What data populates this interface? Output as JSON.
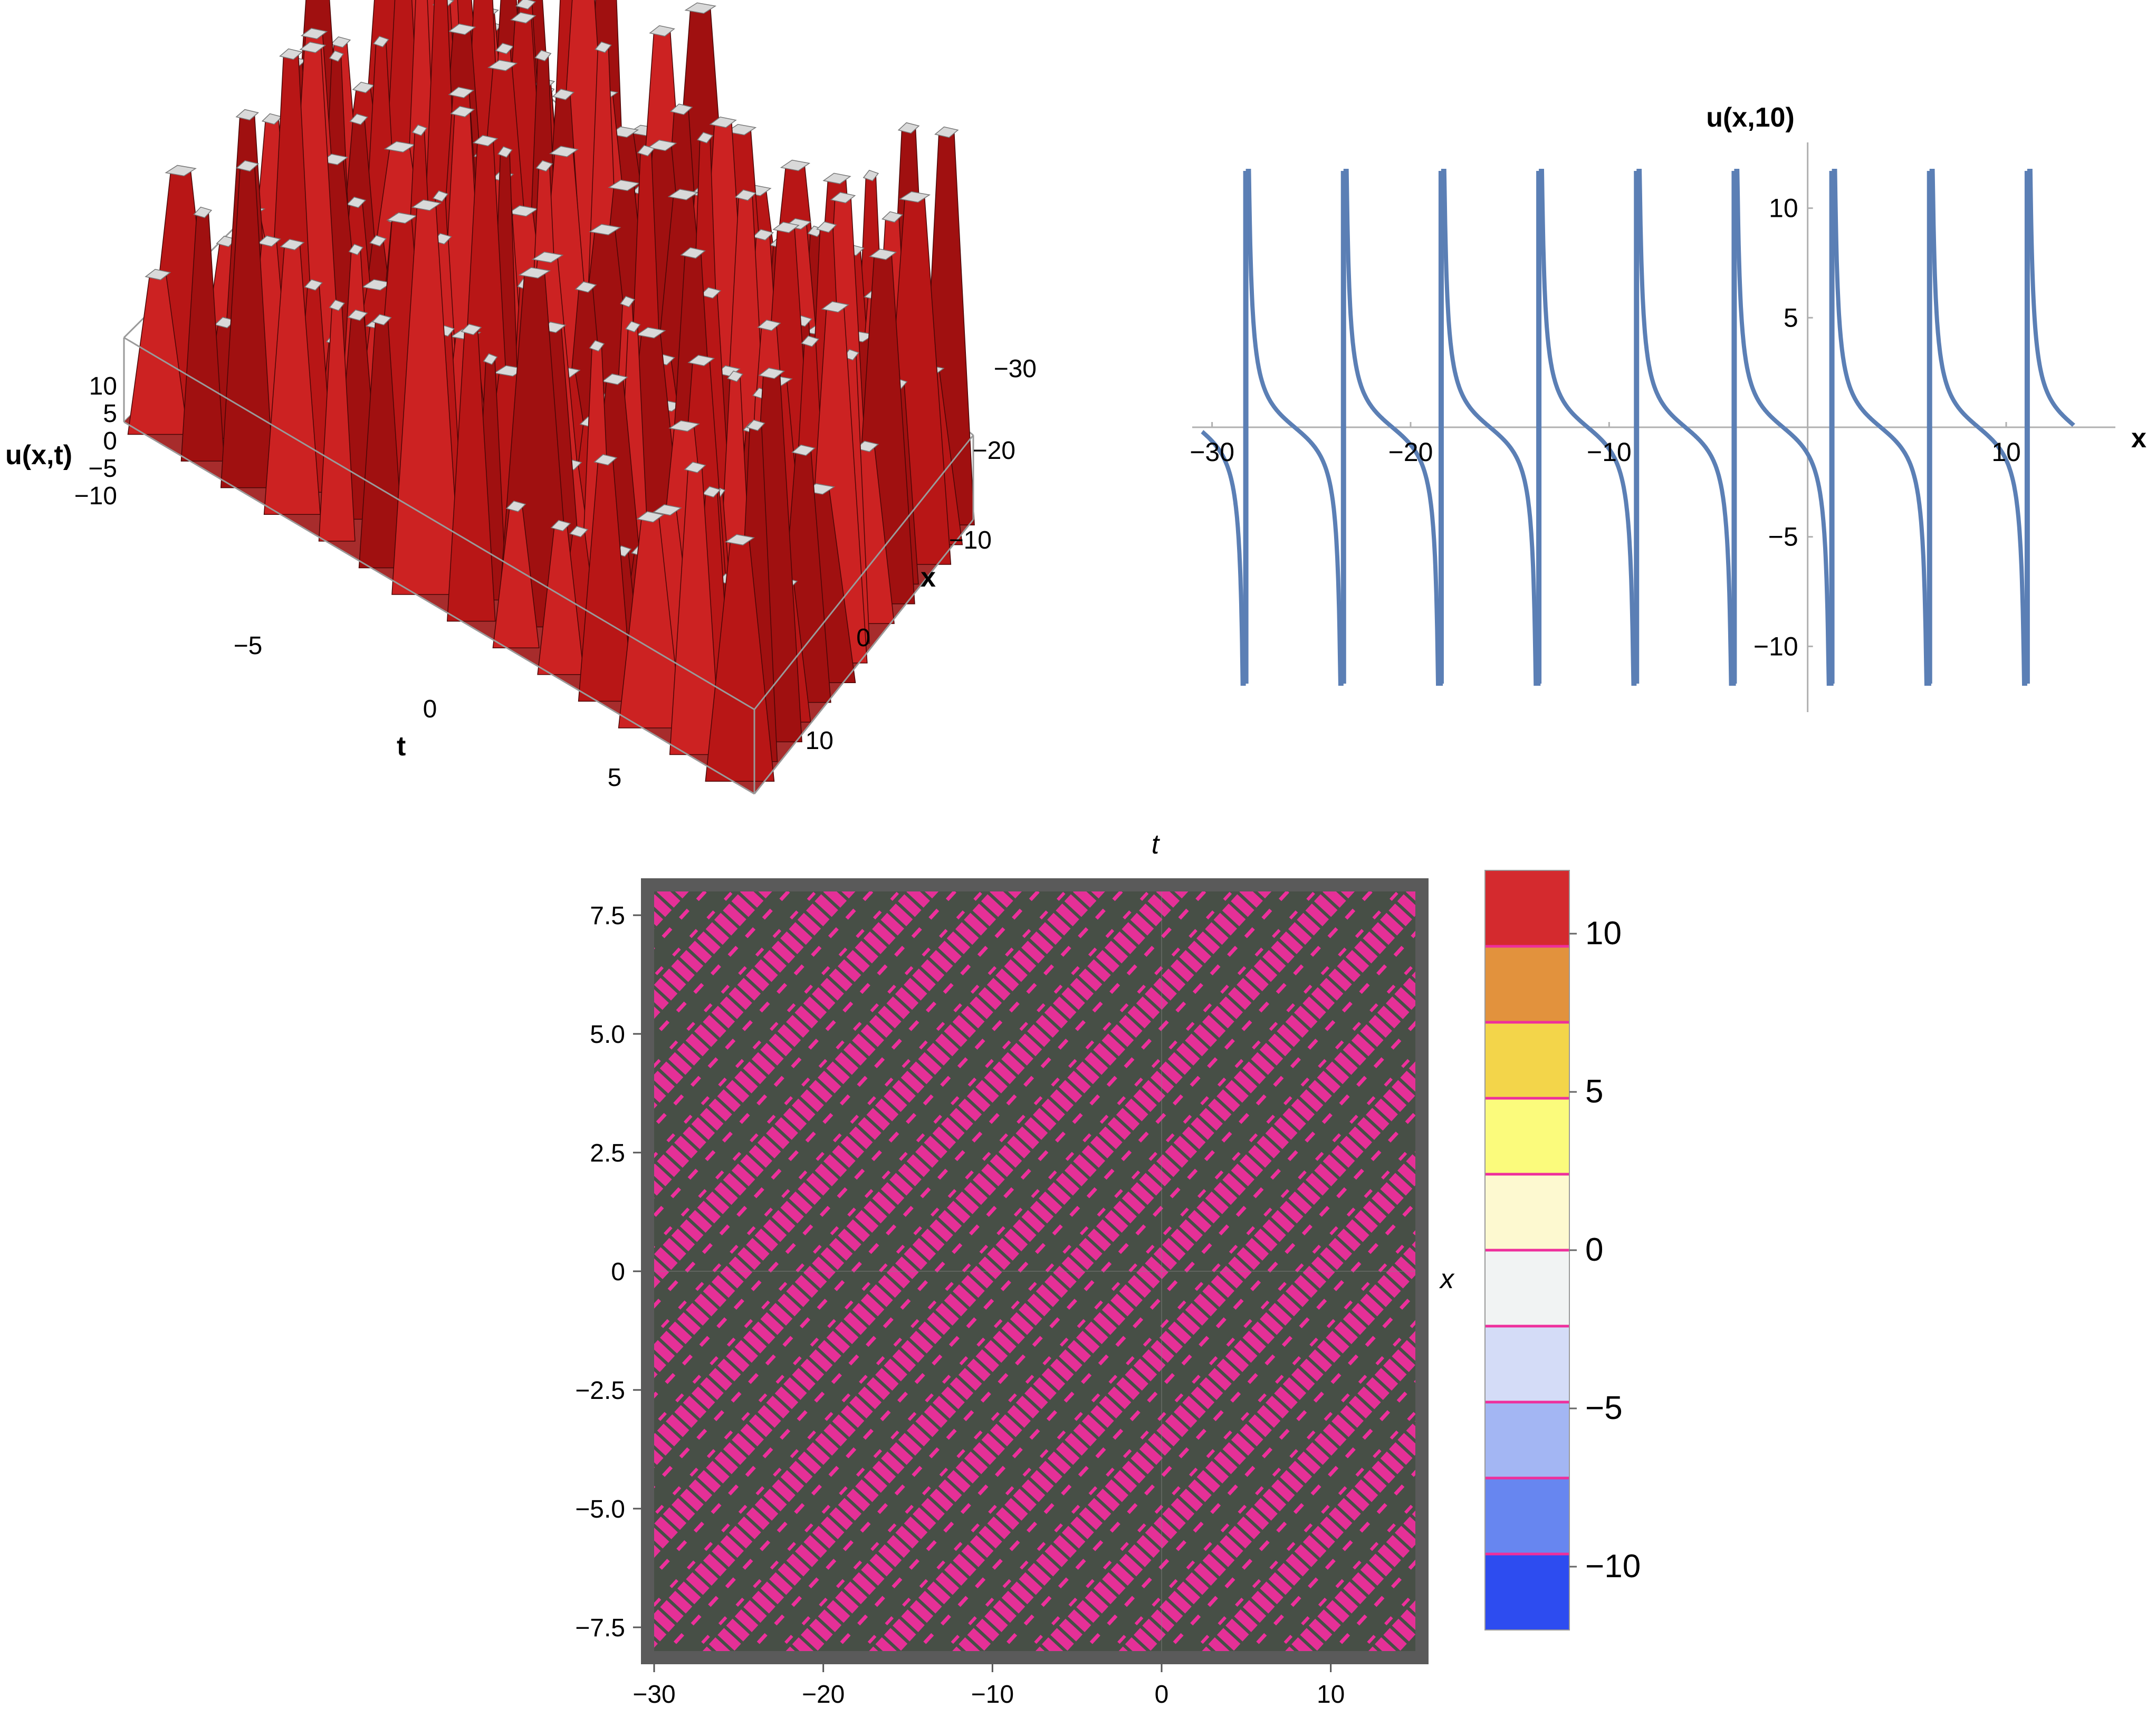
{
  "chart_data": [
    {
      "type": "surface3d",
      "zlabel": "u(x,t)",
      "xlabel": "x",
      "tlabel": "t",
      "x_ticks": [
        "−30",
        "−20",
        "−10",
        "0",
        "10"
      ],
      "t_ticks": [
        "−5",
        "0",
        "5"
      ],
      "z_ticks": [
        "10",
        "5",
        "0",
        "−5",
        "−10"
      ],
      "x_range": [
        -30,
        15
      ],
      "t_range": [
        -8,
        8
      ],
      "z_range": [
        -12,
        12
      ],
      "surface_color": "#c01818"
    },
    {
      "type": "line",
      "ylabel": "u(x,10)",
      "xlabel": "x",
      "x_ticks": [
        "−30",
        "−20",
        "−10",
        "10"
      ],
      "y_ticks": [
        "10",
        "5",
        "−5",
        "−10"
      ],
      "xlim": [
        -31,
        15.5
      ],
      "ylim": [
        -13,
        13
      ],
      "y_clip": [
        -11.7,
        11.7
      ],
      "period": 4.92,
      "first_pole": -28.3,
      "x_end": 13.4,
      "line_color": "#5b7fb5"
    },
    {
      "type": "heatmap",
      "top_label": "t",
      "right_label": "x",
      "x_ticks": [
        "−30",
        "−20",
        "−10",
        "0",
        "10"
      ],
      "y_ticks": [
        "7.5",
        "5.0",
        "2.5",
        "0",
        "−2.5",
        "−5.0",
        "−7.5"
      ],
      "xlim": [
        -30,
        15
      ],
      "ylim": [
        -8,
        8
      ],
      "background_color": "#474f46",
      "pattern_color": "#ee2f9c",
      "colorbar": {
        "ticks": [
          "10",
          "5",
          "0",
          "−5",
          "−10"
        ],
        "range": [
          -12,
          12
        ],
        "colors": [
          "#d42a2e",
          "#e2923d",
          "#f3d54a",
          "#fbfb7c",
          "#fdf9d0",
          "#f1f3f3",
          "#d4dcf7",
          "#a3b6f3",
          "#6786f0",
          "#2d4cf0"
        ]
      }
    }
  ]
}
